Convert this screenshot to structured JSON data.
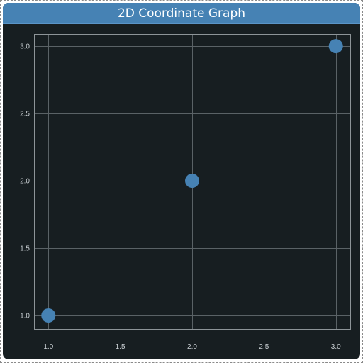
{
  "window": {
    "title": "2D Coordinate Graph"
  },
  "colors": {
    "title_bar": "#4682b4",
    "background": "#171e21",
    "grid": "#5a6266",
    "point": "#4682b4",
    "tick_text": "#c9cfd3"
  },
  "chart_data": {
    "type": "scatter",
    "title": "",
    "xlabel": "",
    "ylabel": "",
    "xlim": [
      0.9,
      3.1
    ],
    "ylim": [
      0.9,
      3.09
    ],
    "x_ticks": [
      1.0,
      1.5,
      2.0,
      2.5,
      3.0
    ],
    "y_ticks": [
      1.0,
      1.5,
      2.0,
      2.5,
      3.0
    ],
    "x_tick_labels": [
      "1.0",
      "1.5",
      "2.0",
      "2.5",
      "3.0"
    ],
    "y_tick_labels": [
      "1.0",
      "1.5",
      "2.0",
      "2.5",
      "3.0"
    ],
    "grid": true,
    "series": [
      {
        "x": [
          1,
          2,
          3
        ],
        "y": [
          1,
          2,
          3
        ]
      }
    ]
  }
}
